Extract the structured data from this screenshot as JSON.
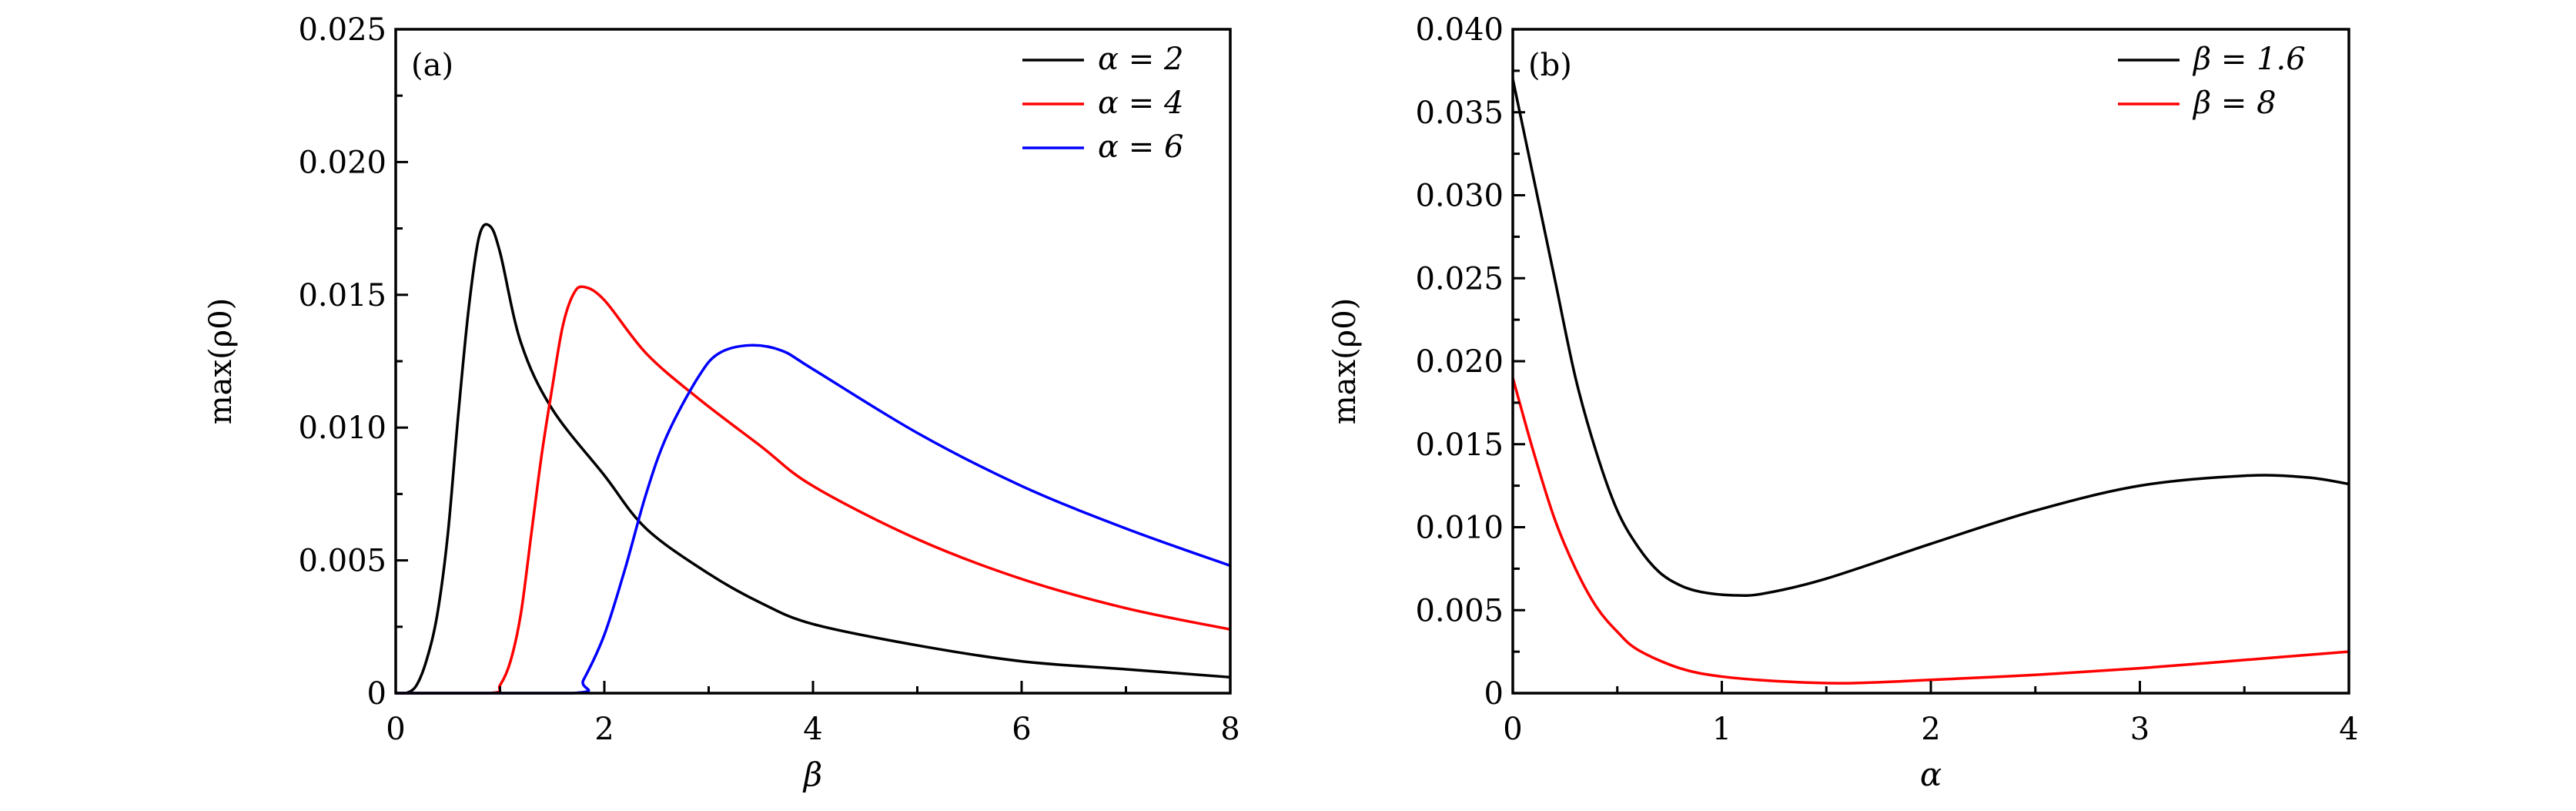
{
  "chart_data": [
    {
      "type": "line",
      "panel_label": "(a)",
      "xlabel": "β",
      "ylabel": "max(ρ0)",
      "xlim": [
        0,
        8
      ],
      "ylim": [
        0,
        0.025
      ],
      "xticks": [
        "0",
        "2",
        "4",
        "6",
        "8"
      ],
      "yticks": [
        "0",
        "0.005",
        "0.010",
        "0.015",
        "0.020",
        "0.025"
      ],
      "grid": false,
      "legend_position": "top-right",
      "series": [
        {
          "name": "α = 2",
          "color": "#000000",
          "x": [
            0,
            0.1,
            0.2,
            0.3,
            0.4,
            0.5,
            0.6,
            0.7,
            0.8,
            0.9,
            1.0,
            1.2,
            1.5,
            2,
            2.4,
            3,
            3.5,
            4,
            5,
            6,
            7,
            8
          ],
          "y": [
            0,
            0,
            0.0003,
            0.0013,
            0.003,
            0.006,
            0.0105,
            0.0145,
            0.0172,
            0.0176,
            0.0166,
            0.0132,
            0.0107,
            0.0082,
            0.0062,
            0.0045,
            0.0034,
            0.0026,
            0.0018,
            0.0012,
            0.0009,
            0.0006
          ]
        },
        {
          "name": "α = 4",
          "color": "#ff0000",
          "x": [
            0,
            0.9,
            1.0,
            1.1,
            1.2,
            1.3,
            1.4,
            1.5,
            1.6,
            1.7,
            1.8,
            2,
            2.4,
            2.9,
            3.5,
            4,
            5,
            6,
            7,
            8
          ],
          "y": [
            0,
            0,
            0.0003,
            0.0012,
            0.003,
            0.006,
            0.009,
            0.0115,
            0.0138,
            0.015,
            0.0153,
            0.0148,
            0.0128,
            0.0111,
            0.0093,
            0.0078,
            0.0058,
            0.0043,
            0.0032,
            0.0024
          ]
        },
        {
          "name": "α = 6",
          "color": "#0000ff",
          "x": [
            0,
            1.7,
            1.8,
            2,
            2.2,
            2.4,
            2.6,
            2.9,
            3.1,
            3.4,
            3.7,
            4,
            5,
            6,
            7,
            8
          ],
          "y": [
            0,
            0,
            0.0005,
            0.0022,
            0.0047,
            0.0075,
            0.0097,
            0.0119,
            0.0128,
            0.0131,
            0.0129,
            0.0122,
            0.0098,
            0.0078,
            0.0062,
            0.0048
          ]
        }
      ]
    },
    {
      "type": "line",
      "panel_label": "(b)",
      "xlabel": "α",
      "ylabel": "max(ρ0)",
      "xlim": [
        0,
        4
      ],
      "ylim": [
        0,
        0.04
      ],
      "xticks": [
        "0",
        "1",
        "2",
        "3",
        "4"
      ],
      "yticks": [
        "0",
        "0.005",
        "0.010",
        "0.015",
        "0.020",
        "0.025",
        "0.030",
        "0.035",
        "0.040"
      ],
      "grid": false,
      "legend_position": "top-right",
      "series": [
        {
          "name": "β = 1.6",
          "color": "#000000",
          "x": [
            0,
            0.1,
            0.2,
            0.3,
            0.4,
            0.5,
            0.6,
            0.7,
            0.8,
            0.9,
            1.05,
            1.2,
            1.5,
            2,
            2.5,
            3,
            3.5,
            3.8,
            4
          ],
          "y": [
            0.037,
            0.031,
            0.025,
            0.019,
            0.0145,
            0.011,
            0.0088,
            0.0073,
            0.0065,
            0.0061,
            0.0059,
            0.006,
            0.0069,
            0.009,
            0.011,
            0.0125,
            0.0131,
            0.013,
            0.0126
          ]
        },
        {
          "name": "β = 8",
          "color": "#ff0000",
          "x": [
            0,
            0.1,
            0.2,
            0.3,
            0.4,
            0.5,
            0.6,
            0.8,
            1,
            1.3,
            1.6,
            2,
            2.5,
            3,
            3.5,
            4
          ],
          "y": [
            0.019,
            0.0145,
            0.0105,
            0.0075,
            0.0052,
            0.0037,
            0.0026,
            0.0015,
            0.001,
            0.0007,
            0.0006,
            0.0008,
            0.0011,
            0.0015,
            0.002,
            0.0025
          ]
        }
      ]
    }
  ]
}
